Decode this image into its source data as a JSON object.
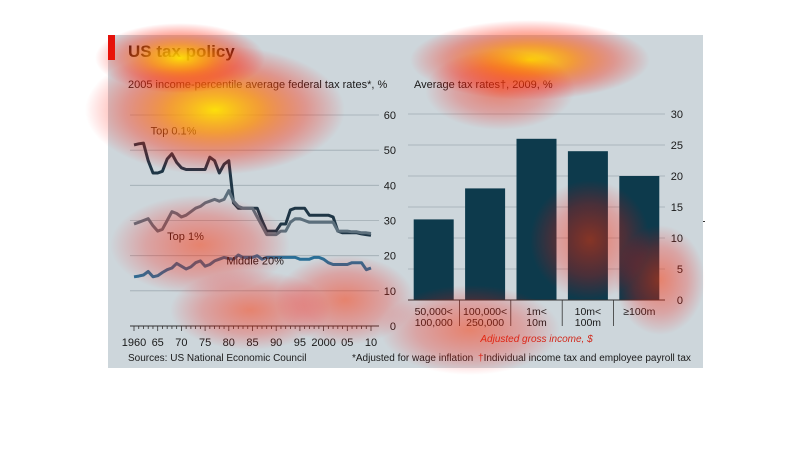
{
  "header": {
    "title": "US tax policy"
  },
  "charts": {
    "left_subtitle": "2005 income-percentile average federal tax rates*, %",
    "right_subtitle": "Average tax rates†, 2009, %",
    "right_xlabel": "Adjusted gross income, $"
  },
  "footer": {
    "source": "Sources: US National Economic Council",
    "note1": "*Adjusted for wage inflation",
    "note2_mark": "†",
    "note2": "Individual income tax and employee payroll tax"
  },
  "colors": {
    "panel_bg": "#cdd6db",
    "accent_red": "#e3120b",
    "bar": "#0d3a4c",
    "line_dark": "#1f3646",
    "line_mid": "#5c6f7c",
    "line_blue": "#2a6e96",
    "note_red": "#d12a1c"
  },
  "chart_data": [
    {
      "type": "line",
      "title": "2005 income-percentile average federal tax rates*, %",
      "ylim": [
        0,
        60
      ],
      "yticks": [
        0,
        10,
        20,
        30,
        40,
        50,
        60
      ],
      "xlim": [
        1960,
        2010
      ],
      "xtick_labels": [
        "1960",
        "65",
        "70",
        "75",
        "80",
        "85",
        "90",
        "95",
        "2000",
        "05",
        "10"
      ],
      "grid": true,
      "series": [
        {
          "name": "Top 0.1%",
          "x": [
            1960,
            1961,
            1962,
            1963,
            1964,
            1965,
            1966,
            1967,
            1968,
            1969,
            1970,
            1971,
            1972,
            1973,
            1974,
            1975,
            1976,
            1977,
            1978,
            1979,
            1980,
            1981,
            1982,
            1983,
            1984,
            1985,
            1986,
            1987,
            1988,
            1989,
            1990,
            1991,
            1992,
            1993,
            1994,
            1995,
            1996,
            1997,
            1998,
            1999,
            2000,
            2001,
            2002,
            2003,
            2004,
            2005,
            2006,
            2007,
            2008,
            2009,
            2010
          ],
          "values": [
            51.5,
            51.8,
            52,
            47,
            43.5,
            43.5,
            44,
            47.5,
            49,
            46.5,
            45,
            44.5,
            44.5,
            44.5,
            44.5,
            44.5,
            48,
            47,
            43.5,
            46,
            47,
            35,
            33.5,
            33.5,
            33.5,
            33.5,
            33.5,
            30,
            27,
            27,
            27,
            29,
            29,
            33,
            33.5,
            33.5,
            33.5,
            31.5,
            31.5,
            31.5,
            31.5,
            31.5,
            31,
            27,
            26.5,
            26.5,
            26.5,
            26.5,
            26.2,
            26,
            25.8
          ]
        },
        {
          "name": "Top 1%",
          "x": [
            1960,
            1961,
            1962,
            1963,
            1964,
            1965,
            1966,
            1967,
            1968,
            1969,
            1970,
            1971,
            1972,
            1973,
            1974,
            1975,
            1976,
            1977,
            1978,
            1979,
            1980,
            1981,
            1982,
            1983,
            1984,
            1985,
            1986,
            1987,
            1988,
            1989,
            1990,
            1991,
            1992,
            1993,
            1994,
            1995,
            1996,
            1997,
            1998,
            1999,
            2000,
            2001,
            2002,
            2003,
            2004,
            2005,
            2006,
            2007,
            2008,
            2009,
            2010
          ],
          "values": [
            29,
            29.5,
            30,
            30.5,
            28.5,
            27,
            27.5,
            30,
            32.5,
            32,
            31,
            31.5,
            32.5,
            33.5,
            34,
            35,
            35.5,
            36,
            35.5,
            36,
            38.5,
            35.5,
            34,
            33.5,
            33.5,
            33.5,
            31,
            28.5,
            26,
            26,
            26,
            27,
            27,
            29.5,
            30.5,
            30.5,
            30,
            29.5,
            29.5,
            29.5,
            29.5,
            29.5,
            29.5,
            27,
            27,
            27,
            26.8,
            26.8,
            26.5,
            26.5,
            26.3
          ]
        },
        {
          "name": "Middle 20%",
          "x": [
            1960,
            1961,
            1962,
            1963,
            1964,
            1965,
            1966,
            1967,
            1968,
            1969,
            1970,
            1971,
            1972,
            1973,
            1974,
            1975,
            1976,
            1977,
            1978,
            1979,
            1980,
            1981,
            1982,
            1983,
            1984,
            1985,
            1986,
            1987,
            1988,
            1989,
            1990,
            1991,
            1992,
            1993,
            1994,
            1995,
            1996,
            1997,
            1998,
            1999,
            2000,
            2001,
            2002,
            2003,
            2004,
            2005,
            2006,
            2007,
            2008,
            2009,
            2010
          ],
          "values": [
            14,
            14.2,
            14.5,
            15.5,
            14,
            14.3,
            15.2,
            16,
            16.5,
            17.8,
            17,
            16.2,
            16.8,
            18,
            18.5,
            17,
            17.5,
            18.5,
            19,
            19.5,
            19.2,
            19,
            20.2,
            19.5,
            19.5,
            19.5,
            20,
            19,
            19.5,
            19.5,
            19.5,
            19.5,
            19.5,
            19.5,
            19.5,
            19,
            19,
            19,
            19.5,
            19.5,
            19,
            18,
            17.5,
            17.5,
            17.5,
            17.5,
            18,
            18,
            18,
            16,
            16.5
          ]
        }
      ]
    },
    {
      "type": "bar",
      "title": "Average tax rates†, 2009, %",
      "categories": [
        "50,000<\n100,000",
        "100,000<\n250,000",
        "1m<\n10m",
        "10m<\n100m",
        "≥100m"
      ],
      "values": [
        13,
        18,
        26,
        24,
        20
      ],
      "xlabel": "Adjusted gross income, $",
      "ylim": [
        0,
        30
      ],
      "yticks": [
        0,
        5,
        10,
        15,
        20,
        25,
        30
      ],
      "grid": true
    }
  ]
}
